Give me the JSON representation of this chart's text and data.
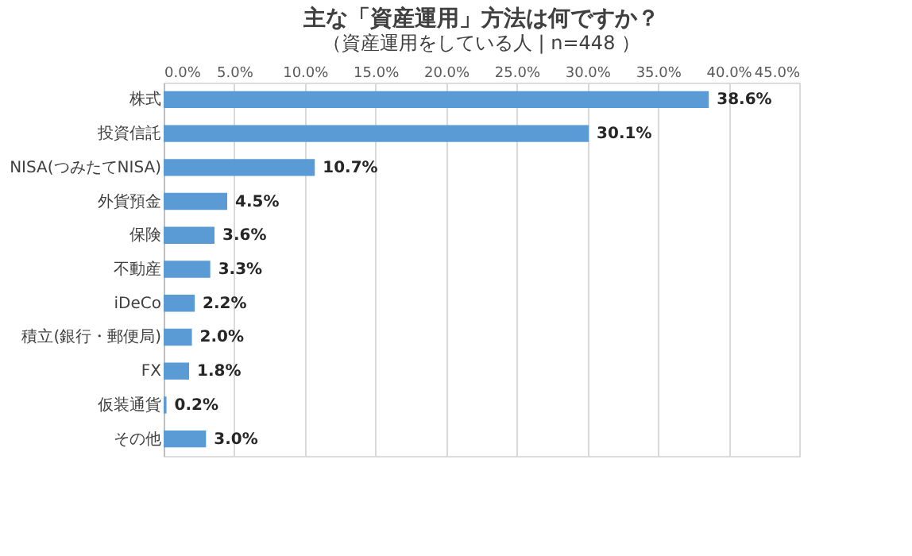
{
  "chart_data": {
    "type": "bar",
    "orientation": "horizontal",
    "title": "主な「資産運用」方法は何ですか？",
    "subtitle": "（資産運用をしている人 | n=448 ）",
    "categories": [
      "株式",
      "投資信託",
      "NISA(つみたてNISA)",
      "外貨預金",
      "保険",
      "不動産",
      "iDeCo",
      "積立(銀行・郵便局)",
      "FX",
      "仮装通貨",
      "その他"
    ],
    "values": [
      38.6,
      30.1,
      10.7,
      4.5,
      3.6,
      3.3,
      2.2,
      2.0,
      1.8,
      0.2,
      3.0
    ],
    "value_labels": [
      "38.6%",
      "30.1%",
      "10.7%",
      "4.5%",
      "3.6%",
      "3.3%",
      "2.2%",
      "2.0%",
      "1.8%",
      "0.2%",
      "3.0%"
    ],
    "color": "#5b9bd5",
    "xlim": [
      0,
      45
    ],
    "xticks": [
      {
        "value": 0,
        "label": "0.0%"
      },
      {
        "value": 5,
        "label": "5.0%"
      },
      {
        "value": 10,
        "label": "10.0%"
      },
      {
        "value": 15,
        "label": "15.0%"
      },
      {
        "value": 20,
        "label": "20.0%"
      },
      {
        "value": 25,
        "label": "25.0%"
      },
      {
        "value": 30,
        "label": "30.0%"
      },
      {
        "value": 35,
        "label": "35.0%"
      },
      {
        "value": 40,
        "label": "40.0%"
      },
      {
        "value": 45,
        "label": "45.0%"
      }
    ],
    "grid": "x"
  }
}
